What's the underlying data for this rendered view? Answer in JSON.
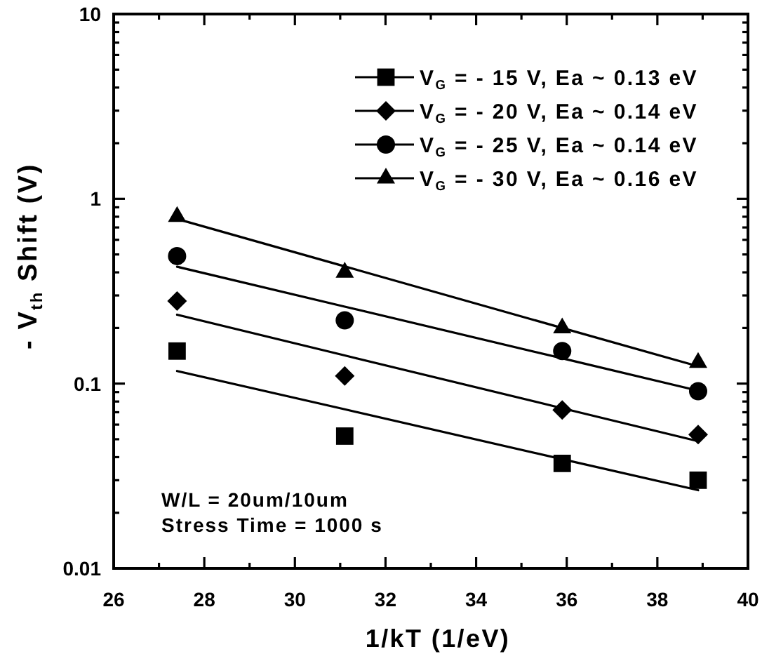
{
  "chart_data": {
    "type": "scatter",
    "xlabel": "1/kT (1/eV)",
    "ylabel": "- V$_{th}$ Shift (V)",
    "x": [
      27.4,
      31.1,
      35.9,
      38.9
    ],
    "xlim": [
      26,
      40
    ],
    "xticks": [
      26,
      {
        "value": 27,
        "label": null
      },
      28,
      {
        "value": 29,
        "label": null
      },
      30,
      {
        "value": 31,
        "label": null
      },
      32,
      {
        "value": 33,
        "label": null
      },
      34,
      {
        "value": 35,
        "label": null
      },
      36,
      {
        "value": 37,
        "label": null
      },
      38,
      {
        "value": 39,
        "label": null
      },
      40
    ],
    "ylim": [
      0.01,
      10
    ],
    "yticks": [
      0.01,
      {
        "value": 0.02,
        "label": null
      },
      {
        "value": 0.03,
        "label": null
      },
      {
        "value": 0.04,
        "label": null
      },
      {
        "value": 0.05,
        "label": null
      },
      {
        "value": 0.06,
        "label": null
      },
      {
        "value": 0.07,
        "label": null
      },
      {
        "value": 0.08,
        "label": null
      },
      {
        "value": 0.09,
        "label": null
      },
      0.1,
      {
        "value": 0.2,
        "label": null
      },
      {
        "value": 0.3,
        "label": null
      },
      {
        "value": 0.4,
        "label": null
      },
      {
        "value": 0.5,
        "label": null
      },
      {
        "value": 0.6,
        "label": null
      },
      {
        "value": 0.7,
        "label": null
      },
      {
        "value": 0.8,
        "label": null
      },
      {
        "value": 0.9,
        "label": null
      },
      1,
      {
        "value": 2,
        "label": null
      },
      {
        "value": 3,
        "label": null
      },
      {
        "value": 4,
        "label": null
      },
      {
        "value": 5,
        "label": null
      },
      {
        "value": 6,
        "label": null
      },
      {
        "value": 7,
        "label": null
      },
      {
        "value": 8,
        "label": null
      },
      {
        "value": 9,
        "label": null
      },
      10
    ],
    "log": "y",
    "legend": "top right",
    "series": [
      {
        "name": "V$_{G}$ = - 15 V, Ea ~ 0.13 eV",
        "marker": "square",
        "color": "#000000",
        "values": [
          0.15,
          0.052,
          0.037,
          0.03
        ]
      },
      {
        "name": "V$_{G}$ = - 20 V, Ea ~ 0.14 eV",
        "marker": "diamond",
        "color": "#000000",
        "values": [
          0.28,
          0.11,
          0.072,
          0.053
        ]
      },
      {
        "name": "V$_{G}$ = - 25 V, Ea ~ 0.14 eV",
        "marker": "circle",
        "color": "#000000",
        "values": [
          0.49,
          0.22,
          0.15,
          0.091
        ]
      },
      {
        "name": "V$_{G}$ = - 30 V, Ea ~ 0.16 eV",
        "marker": "triangle",
        "color": "#000000",
        "values": [
          0.8,
          0.4,
          0.2,
          0.13
        ]
      },
      {
        "type": "line",
        "color": "#000000",
        "values": [
          0.117,
          0.0726,
          0.039,
          0.0265
        ]
      },
      {
        "type": "line",
        "color": "#000000",
        "values": [
          0.236,
          0.142,
          0.0736,
          0.0488
        ]
      },
      {
        "type": "line",
        "color": "#000000",
        "values": [
          0.429,
          0.261,
          0.137,
          0.0916
        ]
      },
      {
        "type": "line",
        "color": "#000000",
        "values": [
          0.778,
          0.431,
          0.2,
          0.124
        ]
      }
    ],
    "annotations": [
      "W/L = 20um/10um",
      "Stress Time = 1000 s"
    ]
  }
}
